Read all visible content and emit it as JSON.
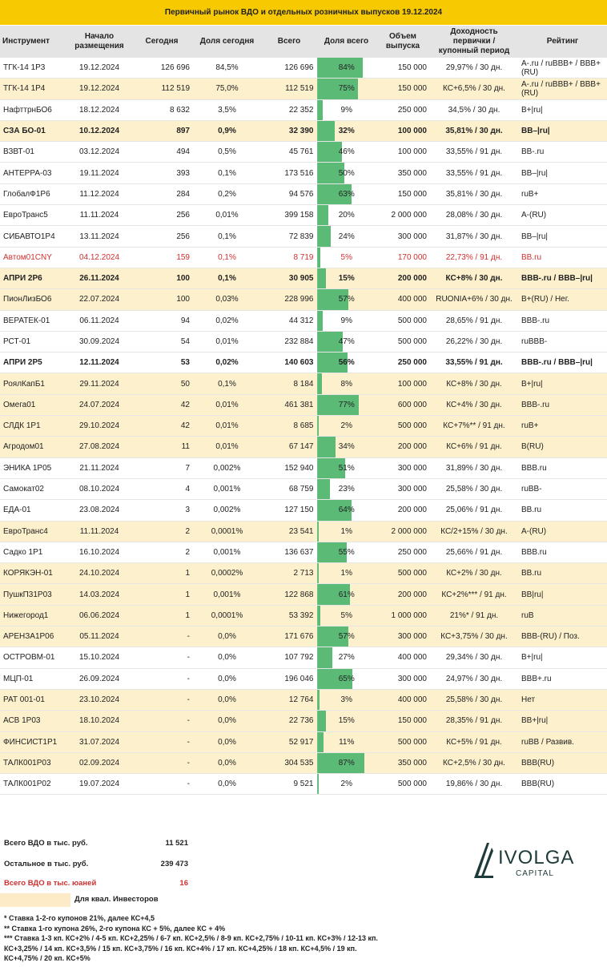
{
  "title": "Первичный рынок ВДО и отдельных розничных выпусков 19.12.2024",
  "columns": [
    "Инструмент",
    "Начало размещения",
    "Сегодня",
    "Доля сегодня",
    "Всего",
    "Доля всего",
    "Объем выпуска",
    "Доходность первички / купонный период",
    "Рейтинг"
  ],
  "rows": [
    {
      "name": "ТГК-14 1Р3",
      "start": "19.12.2024",
      "today": "126 696",
      "share_today": "84,5%",
      "total": "126 696",
      "share_total": "84%",
      "pct": 84,
      "volume": "150 000",
      "yield": "29,97% / 30 дн.",
      "rating": "A-.ru / ruBBB+ / BBB+(RU)",
      "qual": false,
      "bold": false,
      "cny": false
    },
    {
      "name": "ТГК-14 1Р4",
      "start": "19.12.2024",
      "today": "112 519",
      "share_today": "75,0%",
      "total": "112 519",
      "share_total": "75%",
      "pct": 75,
      "volume": "150 000",
      "yield": "КС+6,5% / 30 дн.",
      "rating": "A-.ru / ruBBB+ / BBB+(RU)",
      "qual": true,
      "bold": false,
      "cny": false
    },
    {
      "name": "НафттрнБО6",
      "start": "18.12.2024",
      "today": "8 632",
      "share_today": "3,5%",
      "total": "22 352",
      "share_total": "9%",
      "pct": 9,
      "volume": "250 000",
      "yield": "34,5% / 30 дн.",
      "rating": "B+|ru|",
      "qual": false,
      "bold": false,
      "cny": false
    },
    {
      "name": "СЗА БО-01",
      "start": "10.12.2024",
      "today": "897",
      "share_today": "0,9%",
      "total": "32 390",
      "share_total": "32%",
      "pct": 32,
      "volume": "100 000",
      "yield": "35,81% / 30 дн.",
      "rating": "BB–|ru|",
      "qual": true,
      "bold": true,
      "cny": false
    },
    {
      "name": "ВЗВТ-01",
      "start": "03.12.2024",
      "today": "494",
      "share_today": "0,5%",
      "total": "45 761",
      "share_total": "46%",
      "pct": 46,
      "volume": "100 000",
      "yield": "33,55% / 91 дн.",
      "rating": "BB-.ru",
      "qual": false,
      "bold": false,
      "cny": false
    },
    {
      "name": "АНТЕРРА-03",
      "start": "19.11.2024",
      "today": "393",
      "share_today": "0,1%",
      "total": "173 516",
      "share_total": "50%",
      "pct": 50,
      "volume": "350 000",
      "yield": "33,55% / 91 дн.",
      "rating": "BB–|ru|",
      "qual": false,
      "bold": false,
      "cny": false
    },
    {
      "name": "ГлобалФ1Р6",
      "start": "11.12.2024",
      "today": "284",
      "share_today": "0,2%",
      "total": "94 576",
      "share_total": "63%",
      "pct": 63,
      "volume": "150 000",
      "yield": "35,81% / 30 дн.",
      "rating": "ruB+",
      "qual": false,
      "bold": false,
      "cny": false
    },
    {
      "name": "ЕвроТранс5",
      "start": "11.11.2024",
      "today": "256",
      "share_today": "0,01%",
      "total": "399 158",
      "share_total": "20%",
      "pct": 20,
      "volume": "2 000 000",
      "yield": "28,08% / 30 дн.",
      "rating": "A-(RU)",
      "qual": false,
      "bold": false,
      "cny": false
    },
    {
      "name": "СИБАВТО1Р4",
      "start": "13.11.2024",
      "today": "256",
      "share_today": "0,1%",
      "total": "72 839",
      "share_total": "24%",
      "pct": 24,
      "volume": "300 000",
      "yield": "31,87% / 30 дн.",
      "rating": "BB–|ru|",
      "qual": false,
      "bold": false,
      "cny": false
    },
    {
      "name": "Автом01CNY",
      "start": "04.12.2024",
      "today": "159",
      "share_today": "0,1%",
      "total": "8 719",
      "share_total": "5%",
      "pct": 5,
      "volume": "170 000",
      "yield": "22,73% / 91 дн.",
      "rating": "BB.ru",
      "qual": false,
      "bold": false,
      "cny": true
    },
    {
      "name": "АПРИ 2Р6",
      "start": "26.11.2024",
      "today": "100",
      "share_today": "0,1%",
      "total": "30 905",
      "share_total": "15%",
      "pct": 15,
      "volume": "200 000",
      "yield": "КС+8% / 30 дн.",
      "rating": "BBB-.ru / BBB–|ru|",
      "qual": true,
      "bold": true,
      "cny": false
    },
    {
      "name": "ПионЛизБО6",
      "start": "22.07.2024",
      "today": "100",
      "share_today": "0,03%",
      "total": "228 996",
      "share_total": "57%",
      "pct": 57,
      "volume": "400 000",
      "yield": "RUONIA+6% / 30 дн.",
      "rating": "B+(RU) / Нег.",
      "qual": true,
      "bold": false,
      "cny": false
    },
    {
      "name": "ВЕРАТЕК-01",
      "start": "06.11.2024",
      "today": "94",
      "share_today": "0,02%",
      "total": "44 312",
      "share_total": "9%",
      "pct": 9,
      "volume": "500 000",
      "yield": "28,65% / 91 дн.",
      "rating": "BBB-.ru",
      "qual": false,
      "bold": false,
      "cny": false
    },
    {
      "name": "РСТ-01",
      "start": "30.09.2024",
      "today": "54",
      "share_today": "0,01%",
      "total": "232 884",
      "share_total": "47%",
      "pct": 47,
      "volume": "500 000",
      "yield": "26,22% / 30 дн.",
      "rating": "ruBBB-",
      "qual": false,
      "bold": false,
      "cny": false
    },
    {
      "name": "АПРИ 2Р5",
      "start": "12.11.2024",
      "today": "53",
      "share_today": "0,02%",
      "total": "140 603",
      "share_total": "56%",
      "pct": 56,
      "volume": "250 000",
      "yield": "33,55% / 91 дн.",
      "rating": "BBB-.ru / BBB–|ru|",
      "qual": false,
      "bold": true,
      "cny": false
    },
    {
      "name": "РоялКапБ1",
      "start": "29.11.2024",
      "today": "50",
      "share_today": "0,1%",
      "total": "8 184",
      "share_total": "8%",
      "pct": 8,
      "volume": "100 000",
      "yield": "КС+8% / 30 дн.",
      "rating": "B+|ru|",
      "qual": true,
      "bold": false,
      "cny": false
    },
    {
      "name": "Омега01",
      "start": "24.07.2024",
      "today": "42",
      "share_today": "0,01%",
      "total": "461 381",
      "share_total": "77%",
      "pct": 77,
      "volume": "600 000",
      "yield": "КС+4% / 30 дн.",
      "rating": "BBB-.ru",
      "qual": true,
      "bold": false,
      "cny": false
    },
    {
      "name": "СЛДК 1Р1",
      "start": "29.10.2024",
      "today": "42",
      "share_today": "0,01%",
      "total": "8 685",
      "share_total": "2%",
      "pct": 2,
      "volume": "500 000",
      "yield": "КС+7%** / 91 дн.",
      "rating": "ruB+",
      "qual": true,
      "bold": false,
      "cny": false
    },
    {
      "name": "Агродом01",
      "start": "27.08.2024",
      "today": "11",
      "share_today": "0,01%",
      "total": "67 147",
      "share_total": "34%",
      "pct": 34,
      "volume": "200 000",
      "yield": "КС+6% / 91 дн.",
      "rating": "B(RU)",
      "qual": true,
      "bold": false,
      "cny": false
    },
    {
      "name": "ЭНИКА 1Р05",
      "start": "21.11.2024",
      "today": "7",
      "share_today": "0,002%",
      "total": "152 940",
      "share_total": "51%",
      "pct": 51,
      "volume": "300 000",
      "yield": "31,89% / 30 дн.",
      "rating": "BBB.ru",
      "qual": false,
      "bold": false,
      "cny": false
    },
    {
      "name": "Самокат02",
      "start": "08.10.2024",
      "today": "4",
      "share_today": "0,001%",
      "total": "68 759",
      "share_total": "23%",
      "pct": 23,
      "volume": "300 000",
      "yield": "25,58% / 30 дн.",
      "rating": "ruBB-",
      "qual": false,
      "bold": false,
      "cny": false
    },
    {
      "name": "ЕДА-01",
      "start": "23.08.2024",
      "today": "3",
      "share_today": "0,002%",
      "total": "127 150",
      "share_total": "64%",
      "pct": 64,
      "volume": "200 000",
      "yield": "25,06% / 91 дн.",
      "rating": "BB.ru",
      "qual": false,
      "bold": false,
      "cny": false
    },
    {
      "name": "ЕвроТранс4",
      "start": "11.11.2024",
      "today": "2",
      "share_today": "0,0001%",
      "total": "23 541",
      "share_total": "1%",
      "pct": 1,
      "volume": "2 000 000",
      "yield": "КС/2+15% / 30 дн.",
      "rating": "A-(RU)",
      "qual": true,
      "bold": false,
      "cny": false
    },
    {
      "name": "Садко 1Р1",
      "start": "16.10.2024",
      "today": "2",
      "share_today": "0,001%",
      "total": "136 637",
      "share_total": "55%",
      "pct": 55,
      "volume": "250 000",
      "yield": "25,66% / 91 дн.",
      "rating": "BBB.ru",
      "qual": false,
      "bold": false,
      "cny": false
    },
    {
      "name": "КОРЯКЭН-01",
      "start": "24.10.2024",
      "today": "1",
      "share_today": "0,0002%",
      "total": "2 713",
      "share_total": "1%",
      "pct": 1,
      "volume": "500 000",
      "yield": "КС+2% / 30 дн.",
      "rating": "BB.ru",
      "qual": true,
      "bold": false,
      "cny": false
    },
    {
      "name": "ПушкП31Р03",
      "start": "14.03.2024",
      "today": "1",
      "share_today": "0,001%",
      "total": "122 868",
      "share_total": "61%",
      "pct": 61,
      "volume": "200 000",
      "yield": "КС+2%*** / 91 дн.",
      "rating": "BB|ru|",
      "qual": true,
      "bold": false,
      "cny": false
    },
    {
      "name": "Нижегород1",
      "start": "06.06.2024",
      "today": "1",
      "share_today": "0,0001%",
      "total": "53 392",
      "share_total": "5%",
      "pct": 5,
      "volume": "1 000 000",
      "yield": "21%* / 91 дн.",
      "rating": "ruB",
      "qual": true,
      "bold": false,
      "cny": false
    },
    {
      "name": "АРЕНЗА1Р06",
      "start": "05.11.2024",
      "today": "-",
      "share_today": "0,0%",
      "total": "171 676",
      "share_total": "57%",
      "pct": 57,
      "volume": "300 000",
      "yield": "КС+3,75% / 30 дн.",
      "rating": "BBB-(RU) / Поз.",
      "qual": true,
      "bold": false,
      "cny": false
    },
    {
      "name": "ОСТРОВМ-01",
      "start": "15.10.2024",
      "today": "-",
      "share_today": "0,0%",
      "total": "107 792",
      "share_total": "27%",
      "pct": 27,
      "volume": "400 000",
      "yield": "29,34% / 30 дн.",
      "rating": "B+|ru|",
      "qual": false,
      "bold": false,
      "cny": false
    },
    {
      "name": "МЦП-01",
      "start": "26.09.2024",
      "today": "-",
      "share_today": "0,0%",
      "total": "196 046",
      "share_total": "65%",
      "pct": 65,
      "volume": "300 000",
      "yield": "24,97% / 30 дн.",
      "rating": "BBB+.ru",
      "qual": false,
      "bold": false,
      "cny": false
    },
    {
      "name": "РАТ 001-01",
      "start": "23.10.2024",
      "today": "-",
      "share_today": "0,0%",
      "total": "12 764",
      "share_total": "3%",
      "pct": 3,
      "volume": "400 000",
      "yield": "25,58% / 30 дн.",
      "rating": "Нет",
      "qual": true,
      "bold": false,
      "cny": false
    },
    {
      "name": "АСВ 1Р03",
      "start": "18.10.2024",
      "today": "-",
      "share_today": "0,0%",
      "total": "22 736",
      "share_total": "15%",
      "pct": 15,
      "volume": "150 000",
      "yield": "28,35% / 91 дн.",
      "rating": "BB+|ru|",
      "qual": true,
      "bold": false,
      "cny": false
    },
    {
      "name": "ФИНСИСТ1Р1",
      "start": "31.07.2024",
      "today": "-",
      "share_today": "0,0%",
      "total": "52 917",
      "share_total": "11%",
      "pct": 11,
      "volume": "500 000",
      "yield": "КС+5% / 91 дн.",
      "rating": "ruBB / Развив.",
      "qual": true,
      "bold": false,
      "cny": false
    },
    {
      "name": "ТАЛК001Р03",
      "start": "02.09.2024",
      "today": "-",
      "share_today": "0,0%",
      "total": "304 535",
      "share_total": "87%",
      "pct": 87,
      "volume": "350 000",
      "yield": "КС+2,5% / 30 дн.",
      "rating": "BBB(RU)",
      "qual": true,
      "bold": false,
      "cny": false
    },
    {
      "name": "ТАЛК001Р02",
      "start": "19.07.2024",
      "today": "-",
      "share_today": "0,0%",
      "total": "9 521",
      "share_total": "2%",
      "pct": 2,
      "volume": "500 000",
      "yield": "19,86% / 30 дн.",
      "rating": "BBB(RU)",
      "qual": false,
      "bold": false,
      "cny": false
    }
  ],
  "summary": [
    {
      "label": "Всего ВДО в тыс. руб.",
      "value": "11 521"
    },
    {
      "label": "Остальное в тыс. руб.",
      "value": "239 473"
    },
    {
      "label": "Всего ВДО в тыс. юаней",
      "value": "16"
    }
  ],
  "legend": "Для квал. Инвесторов",
  "notes": [
    "* Ставка 1-2-го купонов 21%, далее КС+4,5",
    "** Ставка 1-го купона 26%, 2-го купона КС + 5%, далее КС + 4%",
    "*** Ставка 1-3 кп. КС+2% / 4-5 кп. КС+2,25% / 6-7 кп. КС+2,5% / 8-9 кп. КС+2,75% / 10-11 кп. КС+3% / 12-13 кп. КС+3,25% / 14 кп. КС+3,5% / 15 кп. КС+3,75% / 16 кп. КС+4% / 17 кп. КС+4,25% / 18 кп. КС+4,5% / 19 кп. КС+4,75% / 20 кп. КС+5%"
  ],
  "logo": {
    "name": "IVOLGA",
    "sub": "CAPITAL"
  },
  "colors": {
    "title_bg": "#f7c900",
    "qual_bg": "#fdf0cc",
    "bar": "#5cba77",
    "cny_text": "#d03030",
    "logo": "#1f3a3a"
  }
}
